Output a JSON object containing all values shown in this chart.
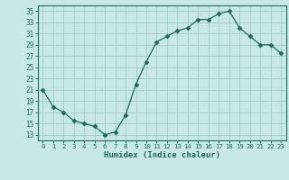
{
  "x": [
    0,
    1,
    2,
    3,
    4,
    5,
    6,
    7,
    8,
    9,
    10,
    11,
    12,
    13,
    14,
    15,
    16,
    17,
    18,
    19,
    20,
    21,
    22,
    23
  ],
  "y": [
    21,
    18,
    17,
    15.5,
    15,
    14.5,
    13,
    13.5,
    16.5,
    22,
    26,
    29.5,
    30.5,
    31.5,
    32,
    33.5,
    33.5,
    34.5,
    35,
    32,
    30.5,
    29,
    29,
    27.5
  ],
  "line_color": "#1a6b5a",
  "marker_color": "#1a6b5a",
  "bg_color": "#c8e8e8",
  "grid_color": "#a0cccc",
  "xlabel": "Humidex (Indice chaleur)",
  "ylabel": "",
  "title": "",
  "xlim": [
    -0.5,
    23.5
  ],
  "ylim": [
    12,
    36
  ],
  "yticks": [
    13,
    15,
    17,
    19,
    21,
    23,
    25,
    27,
    29,
    31,
    33,
    35
  ],
  "xticks": [
    0,
    1,
    2,
    3,
    4,
    5,
    6,
    7,
    8,
    9,
    10,
    11,
    12,
    13,
    14,
    15,
    16,
    17,
    18,
    19,
    20,
    21,
    22,
    23
  ],
  "tick_color": "#1a6b5a",
  "axis_color": "#1a6b5a",
  "font_color": "#1a6b5a"
}
